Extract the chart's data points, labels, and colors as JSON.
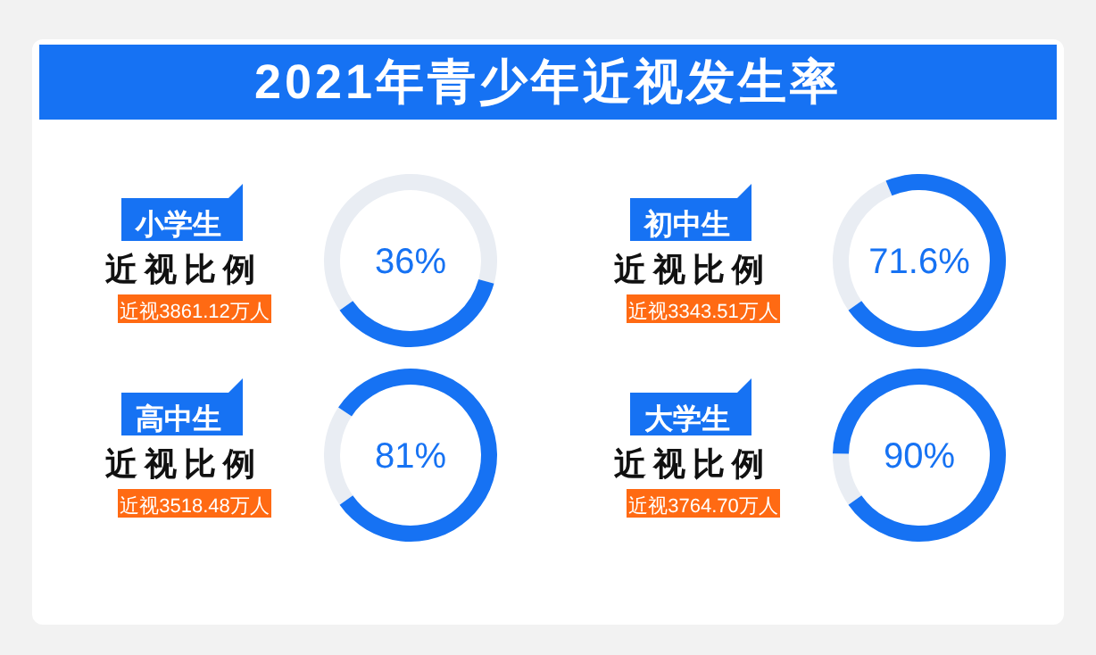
{
  "chart_data": [
    {
      "type": "other",
      "title": "2021年青少年近视发生率"
    },
    {
      "type": "donut",
      "title": "小学生",
      "subtitle": "近视比例",
      "annotations": [
        "近视3861.12万人"
      ],
      "categories": [
        null,
        null
      ],
      "values": [
        36,
        64
      ],
      "colors": [
        "#1672f3",
        "#e9edf3"
      ],
      "value_labels": [
        "36%",
        null
      ]
    },
    {
      "type": "donut",
      "title": "初中生",
      "subtitle": "近视比例",
      "annotations": [
        "近视3343.51万人"
      ],
      "categories": [
        null,
        null
      ],
      "values": [
        71.6,
        28.4
      ],
      "colors": [
        "#1672f3",
        "#e9edf3"
      ],
      "value_labels": [
        "71.6%",
        null
      ]
    },
    {
      "type": "donut",
      "title": "高中生",
      "subtitle": "近视比例",
      "annotations": [
        "近视3518.48万人"
      ],
      "categories": [
        null,
        null
      ],
      "values": [
        81,
        19
      ],
      "colors": [
        "#1672f3",
        "#e9edf3"
      ],
      "value_labels": [
        "81%",
        null
      ]
    },
    {
      "type": "donut",
      "title": "大学生",
      "subtitle": "近视比例",
      "annotations": [
        "近视3764.70万人"
      ],
      "categories": [
        null,
        null
      ],
      "values": [
        90,
        10
      ],
      "colors": [
        "#1672f3",
        "#e9edf3"
      ],
      "value_labels": [
        "90%",
        null
      ]
    }
  ]
}
